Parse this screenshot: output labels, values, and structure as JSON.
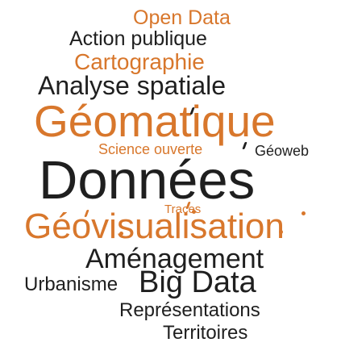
{
  "colors": {
    "dark": "#1f1f1f",
    "orange": "#d8772c"
  },
  "words": [
    {
      "id": "open_data",
      "text": "Open Data",
      "color": "#d8772c"
    },
    {
      "id": "action_publique",
      "text": "Action publique",
      "color": "#1f1f1f"
    },
    {
      "id": "cartographie",
      "text": "Cartographie",
      "color": "#d8772c"
    },
    {
      "id": "analyse_spatiale",
      "text": "Analyse spatiale",
      "color": "#1f1f1f"
    },
    {
      "id": "geomatique",
      "text": "Géomatique",
      "color": "#d8772c"
    },
    {
      "id": "science_ouverte",
      "text": "Science ouverte",
      "color": "#d8772c"
    },
    {
      "id": "geoweb",
      "text": "Géoweb",
      "color": "#1f1f1f"
    },
    {
      "id": "donnees",
      "text": "Données",
      "color": "#1f1f1f"
    },
    {
      "id": "traces",
      "text": "Traces",
      "color": "#d8772c"
    },
    {
      "id": "geovisualisation",
      "text": "Géovisualisation",
      "color": "#d8772c"
    },
    {
      "id": "amenagement",
      "text": "Aménagement",
      "color": "#1f1f1f"
    },
    {
      "id": "urbanisme",
      "text": "Urbanisme",
      "color": "#1f1f1f"
    },
    {
      "id": "big_data",
      "text": "Big Data",
      "color": "#1f1f1f"
    },
    {
      "id": "representations",
      "text": "Représentations",
      "color": "#1f1f1f"
    },
    {
      "id": "territoires",
      "text": "Territoires",
      "color": "#1f1f1f"
    }
  ]
}
